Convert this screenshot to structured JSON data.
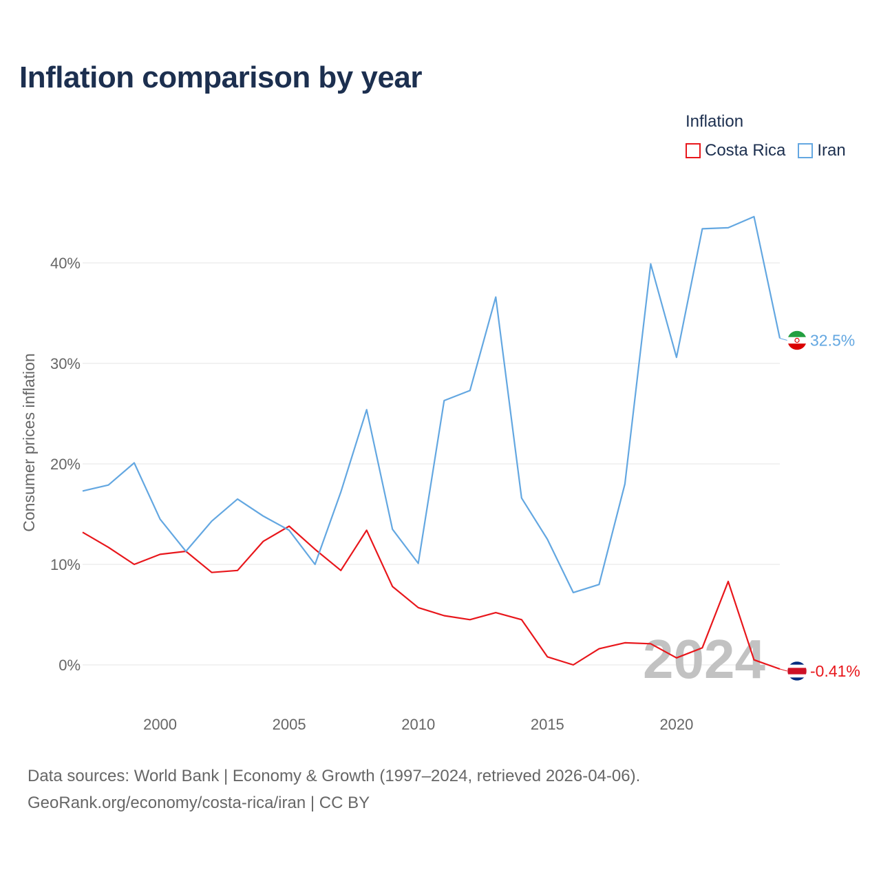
{
  "title": "Inflation comparison by year",
  "legend": {
    "title": "Inflation",
    "items": [
      {
        "label": "Costa Rica",
        "color": "#e8161b"
      },
      {
        "label": "Iran",
        "color": "#63a7e1"
      }
    ]
  },
  "footer": {
    "line1": "Data sources: World Bank | Economy & Growth (1997–2024, retrieved 2026-04-06).",
    "line2": "GeoRank.org/economy/costa-rica/iran | CC BY"
  },
  "chart_data": {
    "type": "line",
    "title": "Inflation comparison by year",
    "xlabel": "",
    "ylabel": "Consumer prices inflation",
    "xlim": [
      1997,
      2024
    ],
    "ylim": [
      -4,
      47
    ],
    "x_ticks": [
      2000,
      2005,
      2010,
      2015,
      2020
    ],
    "y_ticks": [
      0,
      10,
      20,
      30,
      40
    ],
    "y_tick_labels": [
      "0%",
      "10%",
      "20%",
      "30%",
      "40%"
    ],
    "grid": true,
    "legend_position": "top-right",
    "watermark_year": "2024",
    "x": [
      1997,
      1998,
      1999,
      2000,
      2001,
      2002,
      2003,
      2004,
      2005,
      2006,
      2007,
      2008,
      2009,
      2010,
      2011,
      2012,
      2013,
      2014,
      2015,
      2016,
      2017,
      2018,
      2019,
      2020,
      2021,
      2022,
      2023,
      2024
    ],
    "series": [
      {
        "name": "Costa Rica",
        "color": "#e8161b",
        "end_label": "-0.41%",
        "flag": "costa-rica-flag-icon",
        "values": [
          13.2,
          11.7,
          10.0,
          11.0,
          11.3,
          9.2,
          9.4,
          12.3,
          13.8,
          11.5,
          9.4,
          13.4,
          7.8,
          5.7,
          4.9,
          4.5,
          5.2,
          4.5,
          0.8,
          0.0,
          1.6,
          2.2,
          2.1,
          0.7,
          1.7,
          8.3,
          0.5,
          -0.41
        ]
      },
      {
        "name": "Iran",
        "color": "#63a7e1",
        "end_label": "32.5%",
        "flag": "iran-flag-icon",
        "values": [
          17.3,
          17.9,
          20.1,
          14.5,
          11.3,
          14.3,
          16.5,
          14.8,
          13.4,
          10.0,
          17.2,
          25.4,
          13.5,
          10.1,
          26.3,
          27.3,
          36.6,
          16.6,
          12.5,
          7.2,
          8.0,
          18.0,
          39.9,
          30.6,
          43.4,
          43.5,
          44.6,
          32.5
        ]
      }
    ]
  }
}
